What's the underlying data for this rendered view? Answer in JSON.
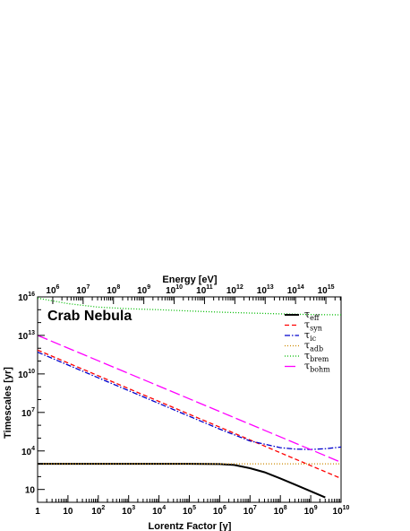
{
  "chart_data": {
    "type": "line",
    "annotation": "Crab Nebula",
    "xlabel": "Lorentz Factor [γ]",
    "x2label": "Energy [eV]",
    "ylabel": "Timescales [yr]",
    "xscale": "log",
    "yscale": "log",
    "xlim": [
      1,
      10000000000
    ],
    "ylim": [
      1,
      10000000000000000
    ],
    "x_ticks": [
      {
        "value": 1,
        "label": "1"
      },
      {
        "value": 10,
        "label": "10"
      },
      {
        "value": 100,
        "label": "10",
        "sup": "2"
      },
      {
        "value": 1000,
        "label": "10",
        "sup": "3"
      },
      {
        "value": 10000,
        "label": "10",
        "sup": "4"
      },
      {
        "value": 100000,
        "label": "10",
        "sup": "5"
      },
      {
        "value": 1000000,
        "label": "10",
        "sup": "6"
      },
      {
        "value": 10000000,
        "label": "10",
        "sup": "7"
      },
      {
        "value": 100000000,
        "label": "10",
        "sup": "8"
      },
      {
        "value": 1000000000,
        "label": "10",
        "sup": "9"
      },
      {
        "value": 10000000000,
        "label": "10",
        "sup": "10"
      }
    ],
    "x2_ticks": [
      {
        "value": 1000000,
        "label": "10",
        "sup": "6"
      },
      {
        "value": 10000000,
        "label": "10",
        "sup": "7"
      },
      {
        "value": 100000000,
        "label": "10",
        "sup": "8"
      },
      {
        "value": 1000000000,
        "label": "10",
        "sup": "9"
      },
      {
        "value": 10000000000,
        "label": "10",
        "sup": "10"
      },
      {
        "value": 100000000000,
        "label": "10",
        "sup": "11"
      },
      {
        "value": 1000000000000,
        "label": "10",
        "sup": "12"
      },
      {
        "value": 10000000000000,
        "label": "10",
        "sup": "13"
      },
      {
        "value": 100000000000000,
        "label": "10",
        "sup": "14"
      },
      {
        "value": 1000000000000000,
        "label": "10",
        "sup": "15"
      }
    ],
    "y_ticks": [
      {
        "value": 10,
        "label": "10"
      },
      {
        "value": 10000,
        "label": "10",
        "sup": "4"
      },
      {
        "value": 10000000,
        "label": "10",
        "sup": "7"
      },
      {
        "value": 10000000000,
        "label": "10",
        "sup": "10"
      },
      {
        "value": 10000000000000,
        "label": "10",
        "sup": "13"
      },
      {
        "value": 10000000000000000,
        "label": "10",
        "sup": "16"
      }
    ],
    "legend_position": "top-right",
    "series": [
      {
        "name": "τ_eff",
        "color": "#000000",
        "dash": "solid",
        "x": [
          1,
          10,
          100,
          1000,
          10000,
          100000,
          1000000,
          3000000,
          10000000,
          30000000,
          100000000,
          300000000,
          1000000000,
          3000000000
        ],
        "y": [
          1000,
          1000,
          1000,
          1000,
          1000,
          1000,
          950,
          800,
          450,
          220,
          72,
          24,
          7.2,
          2.4
        ]
      },
      {
        "name": "τ_syn",
        "color": "#ff0000",
        "dash": "dashed",
        "x": [
          1,
          10000000000
        ],
        "y": [
          720000000000,
          72
        ]
      },
      {
        "name": "τ_ic",
        "color": "#0000cc",
        "dash": "dashdot",
        "x": [
          1,
          10,
          100,
          1000,
          10000,
          100000,
          1000000,
          10000000,
          100000000,
          316000000,
          1000000000,
          3160000000,
          10000000000
        ],
        "y": [
          500000000000,
          50000000000,
          5000000000,
          500000000,
          50000000,
          5000000,
          500000,
          60000,
          18000,
          14000,
          13000,
          15000,
          20000
        ]
      },
      {
        "name": "τ_adb",
        "color": "#cc8800",
        "dash": "dotted",
        "x": [
          1,
          10000000000
        ],
        "y": [
          1000,
          1000
        ]
      },
      {
        "name": "τ_brem",
        "color": "#00bb00",
        "dash": "dotted",
        "x": [
          1,
          10,
          100,
          1000,
          10000,
          100000,
          1000000,
          10000000,
          100000000,
          1000000000,
          10000000000
        ],
        "y": [
          8000000000000000,
          3000000000000000,
          1600000000000000,
          1200000000000000,
          1000000000000000,
          800000000000000,
          650000000000000,
          550000000000000,
          480000000000000,
          420000000000000,
          400000000000000
        ]
      },
      {
        "name": "τ_bohm",
        "color": "#ff00ff",
        "dash": "longdash",
        "x": [
          1,
          10000000000
        ],
        "y": [
          10000000000000,
          1300
        ]
      }
    ]
  }
}
